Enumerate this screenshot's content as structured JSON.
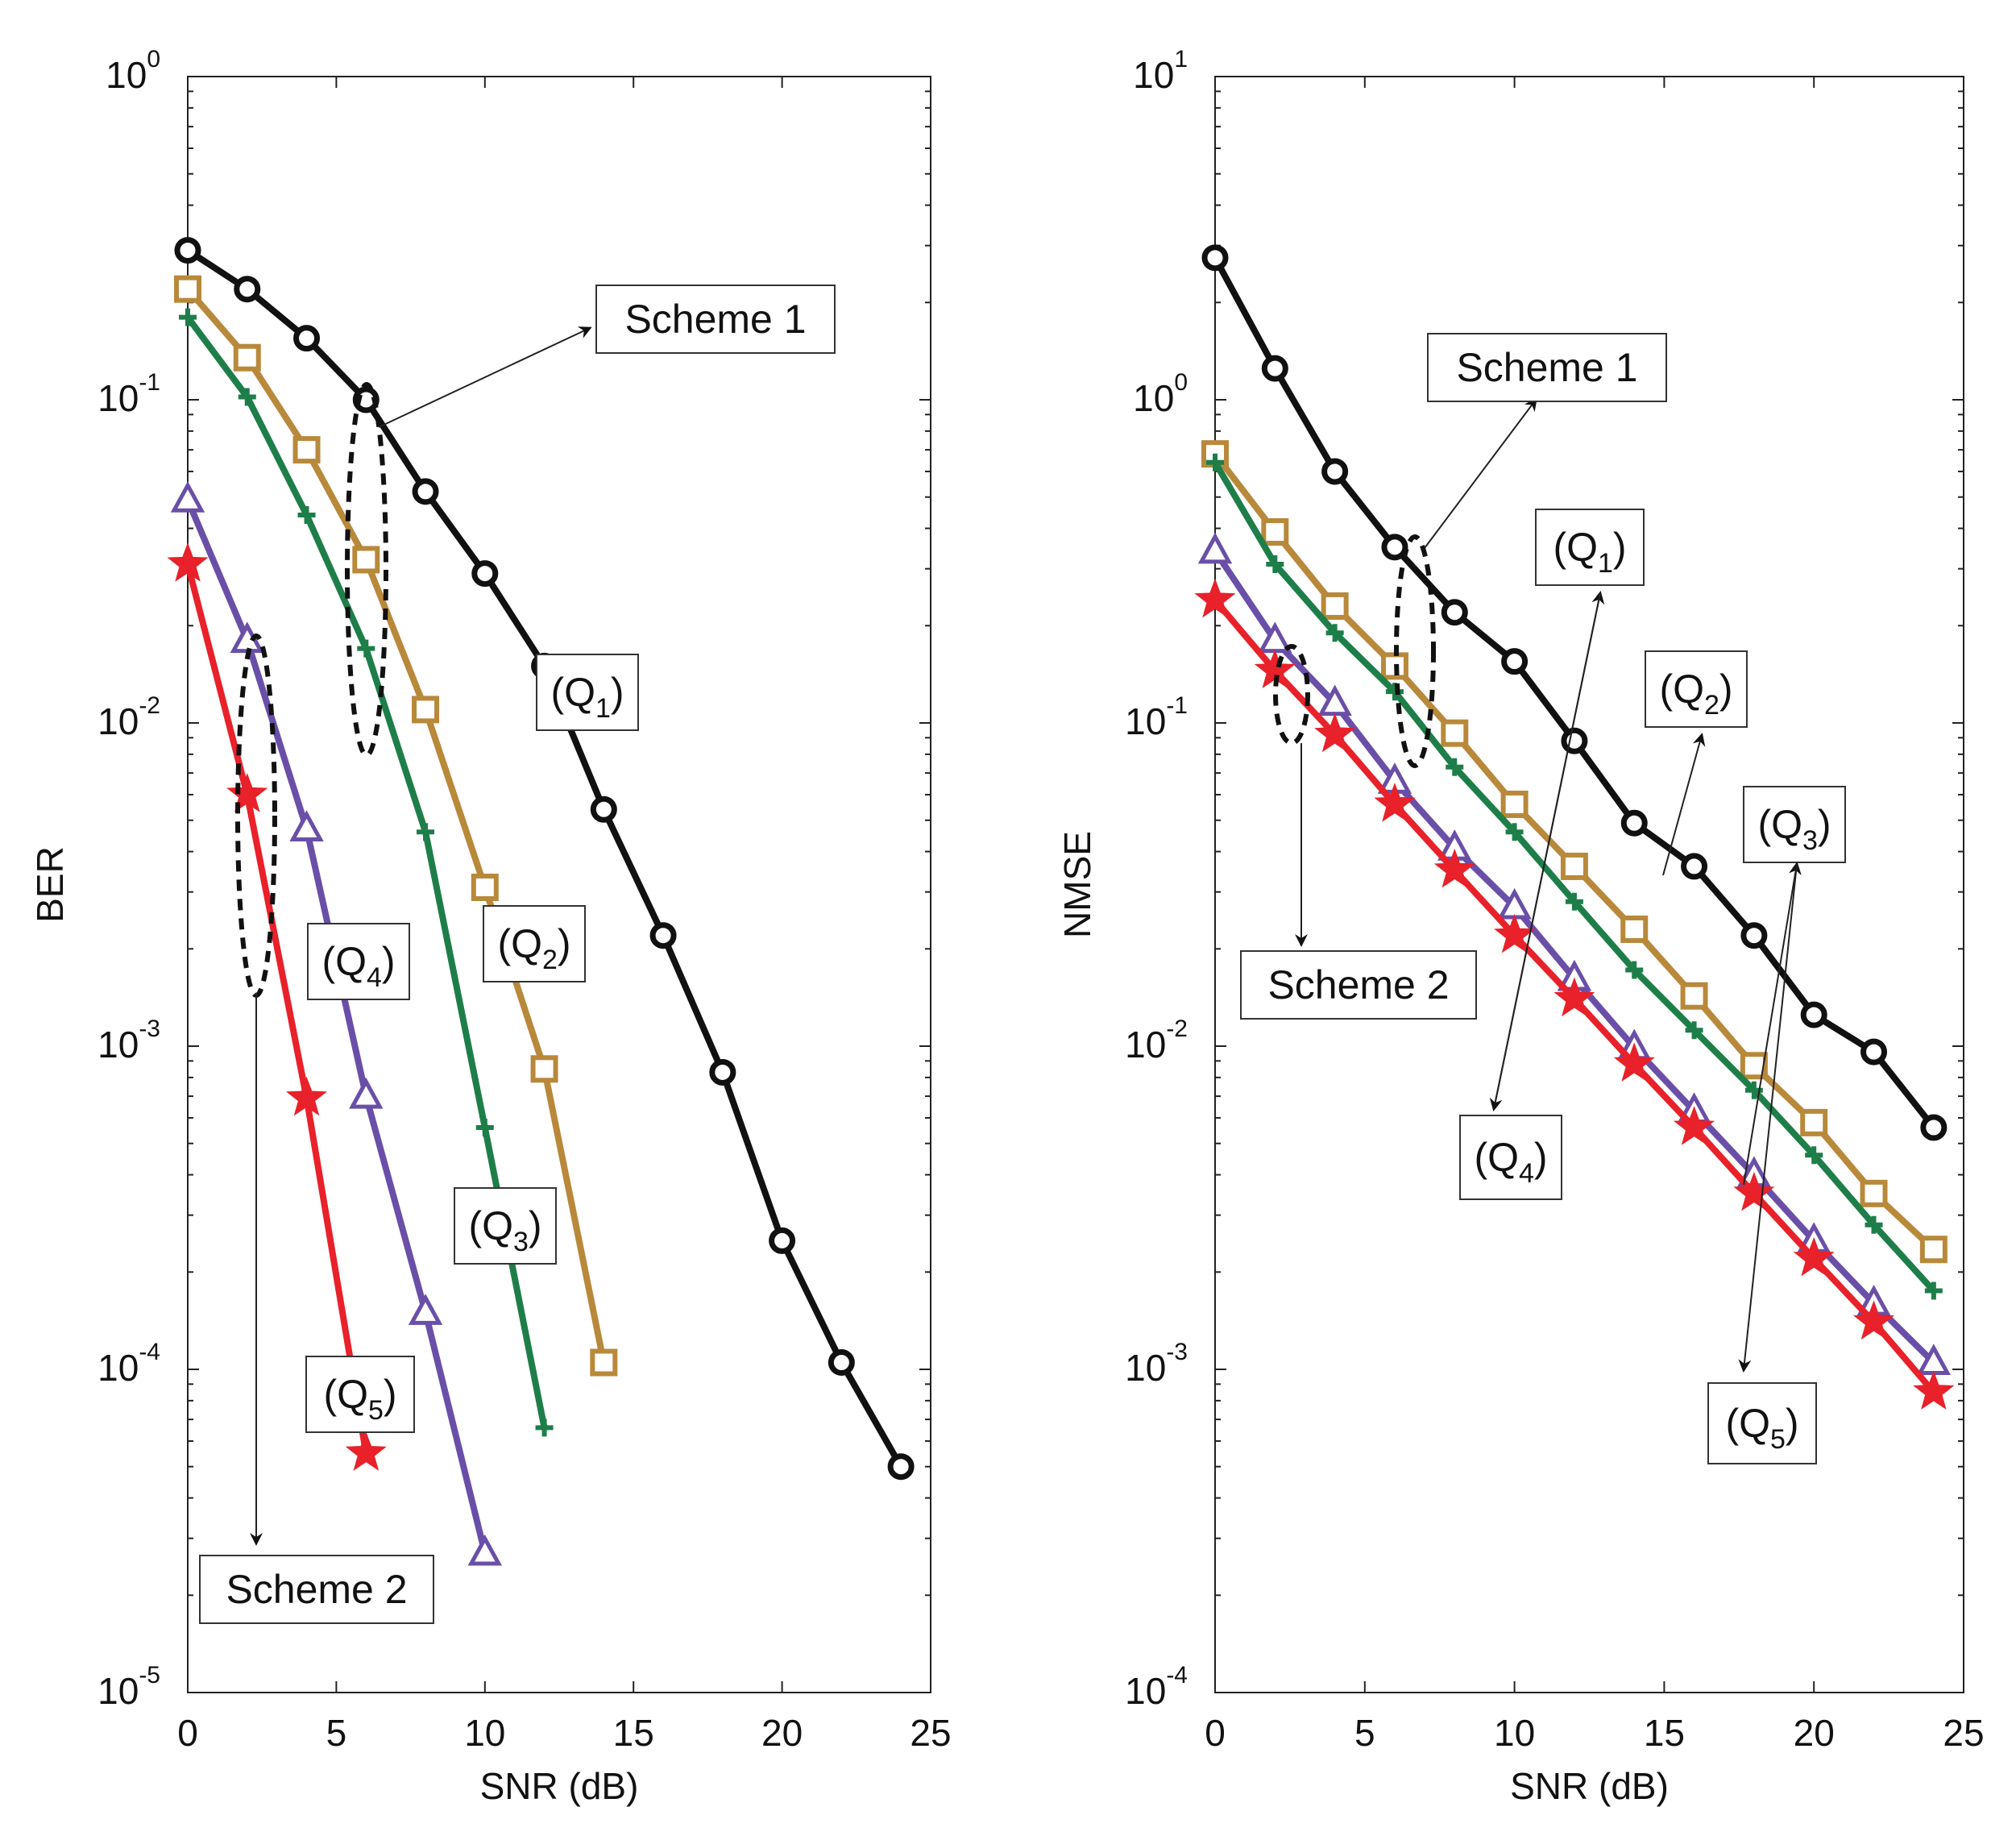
{
  "chart_data": [
    {
      "type": "line",
      "yscale": "log",
      "xlabel": "SNR (dB)",
      "ylabel": "BER",
      "xlim": [
        0,
        25
      ],
      "ylim_exp": [
        -5,
        0
      ],
      "x_ticks": [
        "0",
        "5",
        "10",
        "15",
        "20",
        "25"
      ],
      "y_ticks": [
        {
          "base": "10",
          "exp": "-5",
          "value": -5
        },
        {
          "base": "10",
          "exp": "-4",
          "value": -4
        },
        {
          "base": "10",
          "exp": "-3",
          "value": -3
        },
        {
          "base": "10",
          "exp": "-2",
          "value": -2
        },
        {
          "base": "10",
          "exp": "-1",
          "value": -1
        },
        {
          "base": "10",
          "exp": "0",
          "value": 0
        }
      ],
      "series": [
        {
          "name": "Q1 (Scheme 1)",
          "color": "#111111",
          "marker": "circle",
          "x": [
            0,
            2,
            4,
            6,
            8,
            10,
            12,
            14,
            16,
            18,
            20,
            22,
            24
          ],
          "y": [
            0.29,
            0.22,
            0.155,
            0.1,
            0.052,
            0.029,
            0.015,
            0.0054,
            0.0022,
            0.00083,
            0.00025,
            0.000105,
            5e-05
          ]
        },
        {
          "name": "Q2 (Scheme 1)",
          "color": "#B8893A",
          "marker": "square",
          "x": [
            0,
            2,
            4,
            6,
            8,
            10,
            12,
            14
          ],
          "y": [
            0.22,
            0.135,
            0.07,
            0.032,
            0.011,
            0.0031,
            0.00085,
            0.000105
          ]
        },
        {
          "name": "Q3 (Scheme 1)",
          "color": "#1E7E4A",
          "marker": "plus",
          "x": [
            0,
            2,
            4,
            6,
            8,
            10,
            12
          ],
          "y": [
            0.18,
            0.102,
            0.044,
            0.017,
            0.0046,
            0.00056,
            6.6e-05
          ]
        },
        {
          "name": "Q4 (Scheme 2)",
          "color": "#6A4FA8",
          "marker": "triangle",
          "x": [
            0,
            2,
            4,
            6,
            8,
            10
          ],
          "y": [
            0.049,
            0.018,
            0.0047,
            0.0007,
            0.00015,
            2.7e-05
          ]
        },
        {
          "name": "Q5 (Scheme 2)",
          "color": "#E8212A",
          "marker": "star",
          "x": [
            0,
            2,
            4,
            6
          ],
          "y": [
            0.031,
            0.006,
            0.00069,
            5.5e-05
          ]
        }
      ],
      "annotations": {
        "scheme1": "Scheme 1",
        "scheme2": "Scheme 2",
        "q1": {
          "base": "(Q",
          "sub": "1",
          "close": ")"
        },
        "q2": {
          "base": "(Q",
          "sub": "2",
          "close": ")"
        },
        "q3": {
          "base": "(Q",
          "sub": "3",
          "close": ")"
        },
        "q4": {
          "base": "(Q",
          "sub": "4",
          "close": ")"
        },
        "q5": {
          "base": "(Q",
          "sub": "5",
          "close": ")"
        }
      }
    },
    {
      "type": "line",
      "yscale": "log",
      "xlabel": "SNR (dB)",
      "ylabel": "NMSE",
      "xlim": [
        0,
        25
      ],
      "ylim_exp": [
        -4,
        1
      ],
      "x_ticks": [
        "0",
        "5",
        "10",
        "15",
        "20",
        "25"
      ],
      "y_ticks": [
        {
          "base": "10",
          "exp": "-4",
          "value": -4
        },
        {
          "base": "10",
          "exp": "-3",
          "value": -3
        },
        {
          "base": "10",
          "exp": "-2",
          "value": -2
        },
        {
          "base": "10",
          "exp": "-1",
          "value": -1
        },
        {
          "base": "10",
          "exp": "0",
          "value": 0
        },
        {
          "base": "10",
          "exp": "1",
          "value": 1
        }
      ],
      "series": [
        {
          "name": "Q1 (Scheme 1)",
          "color": "#111111",
          "marker": "circle",
          "x": [
            0,
            2,
            4,
            6,
            8,
            10,
            12,
            14,
            16,
            18,
            20,
            22,
            24
          ],
          "y": [
            2.75,
            1.25,
            0.6,
            0.35,
            0.22,
            0.155,
            0.088,
            0.049,
            0.036,
            0.022,
            0.0125,
            0.0096,
            0.0056
          ]
        },
        {
          "name": "Q2 (Scheme 1)",
          "color": "#B8893A",
          "marker": "square",
          "x": [
            0,
            2,
            4,
            6,
            8,
            10,
            12,
            14,
            16,
            18,
            20,
            22,
            24
          ],
          "y": [
            0.68,
            0.39,
            0.23,
            0.15,
            0.093,
            0.056,
            0.036,
            0.023,
            0.0143,
            0.0087,
            0.0058,
            0.0035,
            0.00235
          ]
        },
        {
          "name": "Q3 (Scheme 1)",
          "color": "#1E7E4A",
          "marker": "plus",
          "x": [
            0,
            2,
            4,
            6,
            8,
            10,
            12,
            14,
            16,
            18,
            20,
            22,
            24
          ],
          "y": [
            0.64,
            0.31,
            0.19,
            0.125,
            0.073,
            0.046,
            0.028,
            0.0172,
            0.0112,
            0.0073,
            0.0046,
            0.0028,
            0.00175
          ]
        },
        {
          "name": "Q4 (Scheme 2)",
          "color": "#6A4FA8",
          "marker": "triangle",
          "x": [
            0,
            2,
            4,
            6,
            8,
            10,
            12,
            14,
            16,
            18,
            20,
            22,
            24
          ],
          "y": [
            0.34,
            0.18,
            0.115,
            0.066,
            0.041,
            0.027,
            0.0162,
            0.0099,
            0.0063,
            0.004,
            0.0025,
            0.0016,
            0.00105
          ]
        },
        {
          "name": "Q5 (Scheme 2)",
          "color": "#E8212A",
          "marker": "star",
          "x": [
            0,
            2,
            4,
            6,
            8,
            10,
            12,
            14,
            16,
            18,
            20,
            22,
            24
          ],
          "y": [
            0.24,
            0.145,
            0.092,
            0.056,
            0.035,
            0.022,
            0.014,
            0.0088,
            0.0056,
            0.0035,
            0.0022,
            0.0014,
            0.00085
          ]
        }
      ],
      "annotations": {
        "scheme1": "Scheme 1",
        "scheme2": "Scheme 2",
        "q1": {
          "base": "(Q",
          "sub": "1",
          "close": ")"
        },
        "q2": {
          "base": "(Q",
          "sub": "2",
          "close": ")"
        },
        "q3": {
          "base": "(Q",
          "sub": "3",
          "close": ")"
        },
        "q4": {
          "base": "(Q",
          "sub": "4",
          "close": ")"
        },
        "q5": {
          "base": "(Q",
          "sub": "5",
          "close": ")"
        }
      }
    }
  ]
}
